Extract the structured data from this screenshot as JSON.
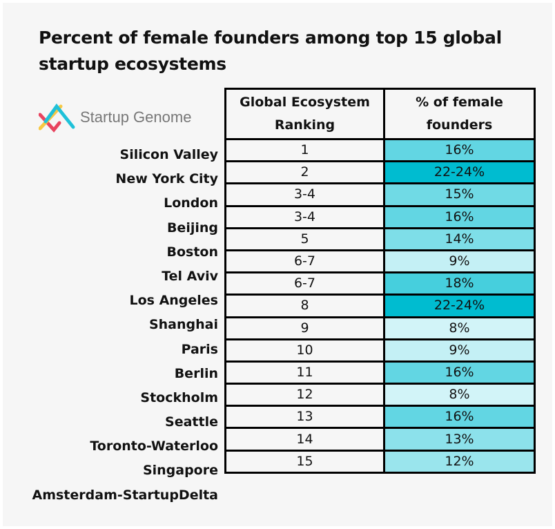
{
  "chart_data": {
    "type": "table",
    "title": "Percent of female founders among top 15 global startup ecosystems",
    "columns": [
      "Global Ecosystem Ranking",
      "% of female founders"
    ],
    "rows": [
      {
        "city": "Silicon Valley",
        "rank": "1",
        "female": "16%",
        "value": 16
      },
      {
        "city": "New York City",
        "rank": "2",
        "female": "22-24%",
        "value": 23
      },
      {
        "city": "London",
        "rank": "3-4",
        "female": "15%",
        "value": 15
      },
      {
        "city": "Beijing",
        "rank": "3-4",
        "female": "16%",
        "value": 16
      },
      {
        "city": "Boston",
        "rank": "5",
        "female": "14%",
        "value": 14
      },
      {
        "city": "Tel Aviv",
        "rank": "6-7",
        "female": "9%",
        "value": 9
      },
      {
        "city": "Los Angeles",
        "rank": "6-7",
        "female": "18%",
        "value": 18
      },
      {
        "city": "Shanghai",
        "rank": "8",
        "female": "22-24%",
        "value": 23
      },
      {
        "city": "Paris",
        "rank": "9",
        "female": "8%",
        "value": 8
      },
      {
        "city": "Berlin",
        "rank": "10",
        "female": "9%",
        "value": 9
      },
      {
        "city": "Stockholm",
        "rank": "11",
        "female": "16%",
        "value": 16
      },
      {
        "city": "Seattle",
        "rank": "12",
        "female": "8%",
        "value": 8
      },
      {
        "city": "Toronto-Waterloo",
        "rank": "13",
        "female": "16%",
        "value": 16
      },
      {
        "city": "Singapore",
        "rank": "14",
        "female": "13%",
        "value": 13
      },
      {
        "city": "Amsterdam-StartupDelta",
        "rank": "15",
        "female": "12%",
        "value": 12
      }
    ],
    "color_scale": {
      "low": "#d2f4f8",
      "high": "#00bcd0",
      "min": 8,
      "max": 23
    }
  },
  "logo": {
    "text": "Startup Genome",
    "colors": [
      "#e8445f",
      "#f7c844",
      "#1fc1d9"
    ]
  }
}
